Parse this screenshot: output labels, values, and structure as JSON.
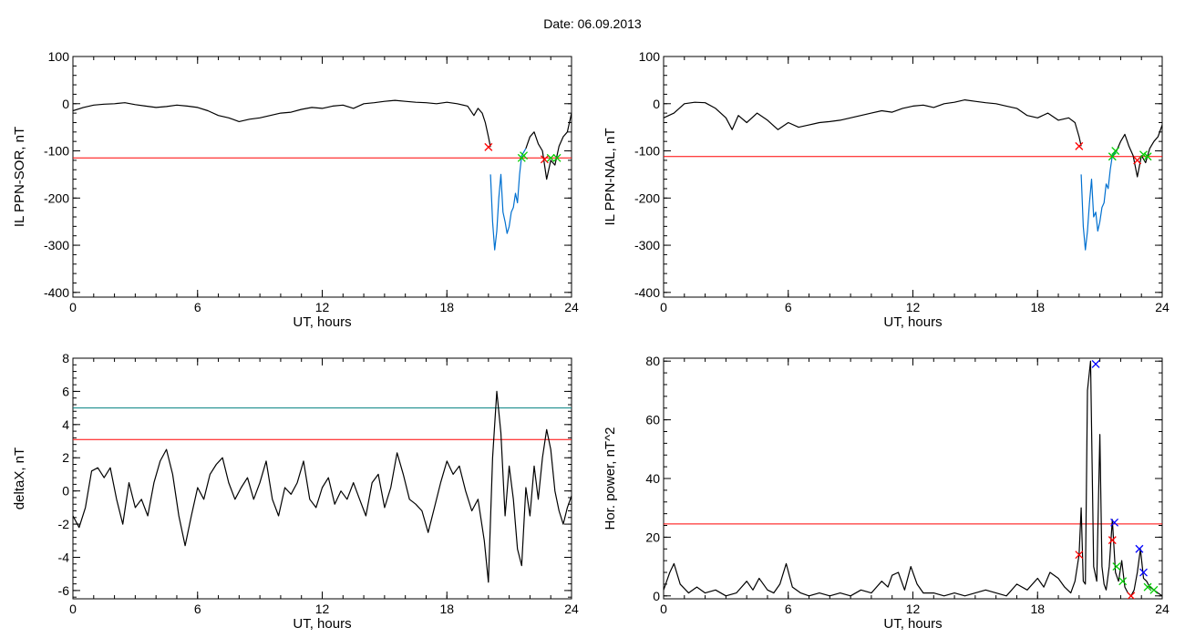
{
  "header": {
    "date_label": "Date:  06.09.2013"
  },
  "chart_data": [
    {
      "type": "line",
      "xlabel": "UT, hours",
      "ylabel": "IL PPN-SOR, nT",
      "xlim": [
        0,
        24
      ],
      "ylim": [
        -410,
        100
      ],
      "xticks": [
        0,
        6,
        12,
        18,
        24
      ],
      "yticks": [
        100,
        0,
        -100,
        -200,
        -300,
        -400
      ],
      "threshold": {
        "value": -115,
        "color": "#ff0000"
      },
      "series": [
        {
          "color": "#000000",
          "x": [
            0,
            0.5,
            1,
            1.5,
            2,
            2.5,
            3,
            3.5,
            4,
            4.5,
            5,
            5.5,
            6,
            6.5,
            7,
            7.5,
            8,
            8.5,
            9,
            9.5,
            10,
            10.5,
            11,
            11.5,
            12,
            12.5,
            13,
            13.5,
            14,
            14.5,
            15,
            15.5,
            16,
            16.5,
            17,
            17.5,
            18,
            18.5,
            19,
            19.3,
            19.5,
            19.7,
            19.85,
            20.0,
            20.1
          ],
          "y": [
            -15,
            -8,
            -3,
            -1,
            0,
            2,
            -2,
            -5,
            -8,
            -6,
            -3,
            -5,
            -8,
            -15,
            -25,
            -30,
            -38,
            -33,
            -30,
            -25,
            -20,
            -18,
            -12,
            -8,
            -10,
            -5,
            -3,
            -10,
            0,
            2,
            5,
            7,
            5,
            3,
            2,
            0,
            3,
            0,
            -5,
            -25,
            -10,
            -20,
            -40,
            -70,
            -92
          ]
        },
        {
          "color": "#0070d0",
          "x": [
            20.1,
            20.2,
            20.3,
            20.4,
            20.5,
            20.6,
            20.7,
            20.8,
            20.9,
            21.0,
            21.1,
            21.2,
            21.3,
            21.4,
            21.5,
            21.6,
            21.8
          ],
          "y": [
            -150,
            -250,
            -310,
            -270,
            -200,
            -150,
            -230,
            -250,
            -275,
            -260,
            -230,
            -220,
            -190,
            -210,
            -150,
            -110,
            -95
          ]
        },
        {
          "color": "#000000",
          "x": [
            21.8,
            22.0,
            22.2,
            22.4,
            22.6,
            22.8,
            23.0,
            23.2,
            23.4,
            23.6,
            23.8,
            24.0
          ],
          "y": [
            -95,
            -70,
            -60,
            -85,
            -100,
            -160,
            -120,
            -130,
            -90,
            -70,
            -60,
            -20
          ]
        }
      ],
      "markers": [
        {
          "x": 20.0,
          "y": -92,
          "color": "#ff0000"
        },
        {
          "x": 21.6,
          "y": -115,
          "color": "#00cc00"
        },
        {
          "x": 21.7,
          "y": -110,
          "color": "#00cc00"
        },
        {
          "x": 22.7,
          "y": -118,
          "color": "#ff0000"
        },
        {
          "x": 23.0,
          "y": -115,
          "color": "#00cc00"
        },
        {
          "x": 23.3,
          "y": -115,
          "color": "#00cc00"
        }
      ]
    },
    {
      "type": "line",
      "xlabel": "UT, hours",
      "ylabel": "IL PPN-NAL, nT",
      "xlim": [
        0,
        24
      ],
      "ylim": [
        -410,
        100
      ],
      "xticks": [
        0,
        6,
        12,
        18,
        24
      ],
      "yticks": [
        100,
        0,
        -100,
        -200,
        -300,
        -400
      ],
      "threshold": {
        "value": -112,
        "color": "#ff0000"
      },
      "series": [
        {
          "color": "#000000",
          "x": [
            0,
            0.5,
            1,
            1.5,
            2,
            2.5,
            3,
            3.3,
            3.6,
            4,
            4.5,
            5,
            5.5,
            6,
            6.5,
            7,
            7.5,
            8,
            8.5,
            9,
            9.5,
            10,
            10.5,
            11,
            11.5,
            12,
            12.5,
            13,
            13.5,
            14,
            14.5,
            15,
            15.5,
            16,
            16.5,
            17,
            17.5,
            18,
            18.5,
            19,
            19.5,
            19.8,
            20.0,
            20.1
          ],
          "y": [
            -30,
            -20,
            0,
            3,
            2,
            -10,
            -30,
            -55,
            -25,
            -40,
            -20,
            -35,
            -55,
            -40,
            -50,
            -45,
            -40,
            -38,
            -35,
            -30,
            -25,
            -20,
            -15,
            -18,
            -10,
            -5,
            -3,
            -8,
            0,
            3,
            8,
            5,
            2,
            0,
            -5,
            -10,
            -25,
            -30,
            -20,
            -35,
            -30,
            -40,
            -70,
            -90
          ]
        },
        {
          "color": "#0070d0",
          "x": [
            20.1,
            20.2,
            20.3,
            20.4,
            20.5,
            20.6,
            20.7,
            20.8,
            20.9,
            21.0,
            21.1,
            21.2,
            21.3,
            21.4,
            21.5,
            21.6,
            21.8
          ],
          "y": [
            -150,
            -260,
            -310,
            -270,
            -210,
            -160,
            -240,
            -230,
            -270,
            -250,
            -220,
            -210,
            -170,
            -180,
            -140,
            -110,
            -100
          ]
        },
        {
          "color": "#000000",
          "x": [
            21.8,
            22.0,
            22.2,
            22.4,
            22.6,
            22.8,
            23.0,
            23.2,
            23.4,
            23.6,
            23.8,
            24.0
          ],
          "y": [
            -100,
            -80,
            -65,
            -90,
            -110,
            -155,
            -110,
            -125,
            -95,
            -80,
            -70,
            -45
          ]
        }
      ],
      "markers": [
        {
          "x": 20.0,
          "y": -90,
          "color": "#ff0000"
        },
        {
          "x": 21.6,
          "y": -112,
          "color": "#00cc00"
        },
        {
          "x": 21.75,
          "y": -100,
          "color": "#00cc00"
        },
        {
          "x": 22.8,
          "y": -120,
          "color": "#ff0000"
        },
        {
          "x": 23.1,
          "y": -108,
          "color": "#00cc00"
        },
        {
          "x": 23.3,
          "y": -112,
          "color": "#00cc00"
        }
      ]
    },
    {
      "type": "line",
      "xlabel": "UT, hours",
      "ylabel": "deltaX, nT",
      "xlim": [
        0,
        24
      ],
      "ylim": [
        -6.5,
        8
      ],
      "xticks": [
        0,
        6,
        12,
        18,
        24
      ],
      "yticks": [
        8,
        6,
        4,
        2,
        0,
        -2,
        -4,
        -6
      ],
      "thresholds": [
        {
          "value": 5.0,
          "color": "#008080"
        },
        {
          "value": 3.1,
          "color": "#ff0000"
        }
      ],
      "series": [
        {
          "color": "#000000",
          "x": [
            0,
            0.3,
            0.6,
            0.9,
            1.2,
            1.5,
            1.8,
            2.1,
            2.4,
            2.7,
            3.0,
            3.3,
            3.6,
            3.9,
            4.2,
            4.5,
            4.8,
            5.1,
            5.4,
            5.7,
            6.0,
            6.3,
            6.6,
            6.9,
            7.2,
            7.5,
            7.8,
            8.1,
            8.4,
            8.7,
            9.0,
            9.3,
            9.6,
            9.9,
            10.2,
            10.5,
            10.8,
            11.1,
            11.4,
            11.7,
            12.0,
            12.3,
            12.6,
            12.9,
            13.2,
            13.5,
            13.8,
            14.1,
            14.4,
            14.7,
            15.0,
            15.3,
            15.6,
            15.9,
            16.2,
            16.5,
            16.8,
            17.1,
            17.4,
            17.7,
            18.0,
            18.3,
            18.6,
            18.9,
            19.2,
            19.5,
            19.8,
            20.0,
            20.2,
            20.4,
            20.6,
            20.8,
            21.0,
            21.2,
            21.4,
            21.6,
            21.8,
            22.0,
            22.2,
            22.4,
            22.6,
            22.8,
            23.0,
            23.2,
            23.4,
            23.6,
            23.8,
            24.0
          ],
          "y": [
            -1.5,
            -2.2,
            -1.0,
            1.2,
            1.4,
            0.8,
            1.4,
            -0.5,
            -2.0,
            0.5,
            -1.0,
            -0.5,
            -1.5,
            0.5,
            1.8,
            2.5,
            1.0,
            -1.5,
            -3.3,
            -1.5,
            0.2,
            -0.5,
            1.0,
            1.6,
            2.0,
            0.5,
            -0.5,
            0.2,
            0.8,
            -0.5,
            0.5,
            1.8,
            -0.5,
            -1.5,
            0.2,
            -0.2,
            0.5,
            1.8,
            -0.5,
            -1.0,
            0.2,
            0.8,
            -0.8,
            0.0,
            -0.5,
            0.5,
            -0.5,
            -1.5,
            0.5,
            1.0,
            -1.0,
            0.2,
            2.3,
            1.0,
            -0.5,
            -0.8,
            -1.2,
            -2.5,
            -1.0,
            0.5,
            1.8,
            1.0,
            1.5,
            0.0,
            -1.2,
            -0.5,
            -3.0,
            -5.5,
            2.0,
            6.0,
            3.5,
            -1.5,
            1.5,
            -0.5,
            -3.5,
            -4.5,
            0.2,
            -1.5,
            1.5,
            -0.5,
            2.0,
            3.7,
            2.5,
            0.0,
            -1.2,
            -2.0,
            -1.0,
            -0.3
          ]
        }
      ]
    },
    {
      "type": "line",
      "xlabel": "UT, hours",
      "ylabel": "Hor. power, nT^2",
      "xlim": [
        0,
        24
      ],
      "ylim": [
        -1,
        81
      ],
      "xticks": [
        0,
        6,
        12,
        18,
        24
      ],
      "yticks": [
        0,
        20,
        40,
        60,
        80
      ],
      "threshold": {
        "value": 24.5,
        "color": "#ff0000"
      },
      "series": [
        {
          "color": "#000000",
          "x": [
            0,
            0.3,
            0.5,
            0.8,
            1.2,
            1.6,
            2.0,
            2.5,
            3.0,
            3.5,
            4.0,
            4.3,
            4.6,
            5.0,
            5.3,
            5.6,
            5.9,
            6.2,
            6.6,
            7.0,
            7.5,
            8.0,
            8.5,
            9.0,
            9.5,
            10.0,
            10.5,
            10.8,
            11.0,
            11.3,
            11.6,
            11.9,
            12.2,
            12.5,
            13.0,
            13.5,
            14.0,
            14.5,
            15.0,
            15.5,
            16.0,
            16.5,
            17.0,
            17.5,
            18.0,
            18.3,
            18.6,
            19.0,
            19.3,
            19.6,
            19.8,
            20.0,
            20.1,
            20.2,
            20.3,
            20.4,
            20.55,
            20.7,
            20.85,
            21.0,
            21.1,
            21.2,
            21.3,
            21.45,
            21.6,
            21.75,
            21.9,
            22.05,
            22.2,
            22.35,
            22.5,
            22.65,
            22.8,
            22.95,
            23.1,
            23.25,
            23.4,
            23.6,
            23.8,
            24.0
          ],
          "y": [
            2,
            8,
            11,
            4,
            1,
            3,
            1,
            2,
            0,
            1,
            5,
            2,
            6,
            2,
            1,
            4,
            11,
            3,
            1,
            0,
            1,
            0,
            1,
            0,
            2,
            1,
            5,
            3,
            7,
            8,
            2,
            10,
            4,
            1,
            1,
            0,
            1,
            0,
            1,
            2,
            1,
            0,
            4,
            2,
            6,
            3,
            8,
            6,
            3,
            1,
            5,
            14,
            30,
            5,
            4,
            70,
            80,
            10,
            5,
            55,
            10,
            4,
            2,
            10,
            26,
            8,
            5,
            12,
            3,
            1,
            0,
            2,
            8,
            16,
            6,
            5,
            3,
            2,
            1,
            0
          ]
        }
      ],
      "markers": [
        {
          "x": 20.0,
          "y": 14,
          "color": "#ff0000"
        },
        {
          "x": 20.8,
          "y": 79,
          "color": "#0000ff"
        },
        {
          "x": 21.6,
          "y": 19,
          "color": "#ff0000"
        },
        {
          "x": 21.7,
          "y": 25,
          "color": "#0000ff"
        },
        {
          "x": 21.8,
          "y": 10,
          "color": "#00cc00"
        },
        {
          "x": 22.1,
          "y": 5,
          "color": "#00cc00"
        },
        {
          "x": 22.5,
          "y": 0,
          "color": "#ff0000"
        },
        {
          "x": 22.9,
          "y": 16,
          "color": "#0000ff"
        },
        {
          "x": 23.1,
          "y": 8,
          "color": "#0000ff"
        },
        {
          "x": 23.3,
          "y": 3,
          "color": "#00cc00"
        },
        {
          "x": 23.6,
          "y": 2,
          "color": "#00cc00"
        }
      ]
    }
  ]
}
